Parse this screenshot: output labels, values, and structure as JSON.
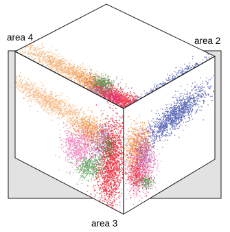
{
  "labels": {
    "top_left": "area 4",
    "top_right": "area 2",
    "bottom": "area 3"
  },
  "colors": {
    "background_panel": "#e2e2e2",
    "face": "#ffffff",
    "edge": "#1a1a1a",
    "clusters": {
      "orange": "#f07f21",
      "red": "#ea1b2d",
      "blue": "#3a48a8",
      "purple": "#8c47a3",
      "pink": "#e23592",
      "green": "#3a8a3a"
    }
  }
}
